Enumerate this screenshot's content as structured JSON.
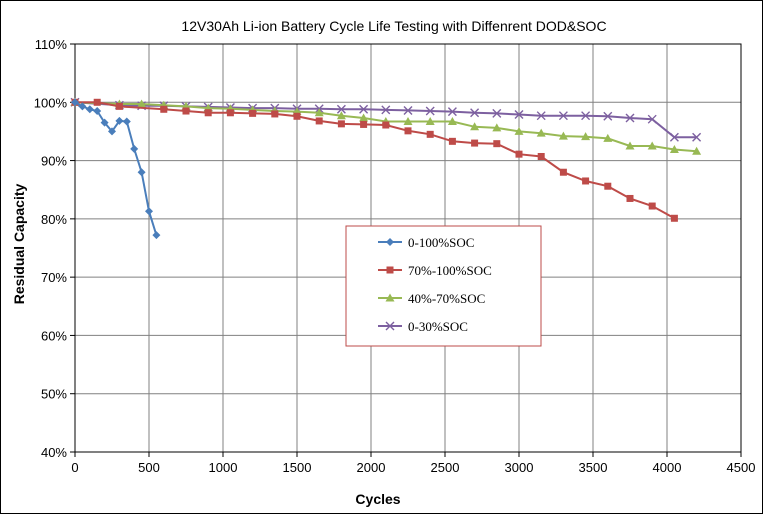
{
  "chart_data": {
    "type": "line",
    "title": "12V30Ah Li-ion Battery Cycle Life Testing with Diffenrent DOD&SOC",
    "xlabel": "Cycles",
    "ylabel": "Residual Capacity",
    "xlim": [
      0,
      4500
    ],
    "ylim": [
      40,
      110
    ],
    "xticks": [
      0,
      500,
      1000,
      1500,
      2000,
      2500,
      3000,
      3500,
      4000,
      4500
    ],
    "xtick_labels": [
      "0",
      "500",
      "1000",
      "1500",
      "2000",
      "2500",
      "3000",
      "3500",
      "4000",
      "4500"
    ],
    "yticks": [
      40,
      50,
      60,
      70,
      80,
      90,
      100,
      110
    ],
    "ytick_labels": [
      "40%",
      "50%",
      "60%",
      "70%",
      "80%",
      "90%",
      "100%",
      "110%"
    ],
    "grid": true,
    "legend_position": "center",
    "series": [
      {
        "name": "0-100%SOC",
        "color": "#4a7ebb",
        "marker": "diamond",
        "points": [
          [
            0,
            100
          ],
          [
            50,
            99.3
          ],
          [
            100,
            98.8
          ],
          [
            150,
            98.5
          ],
          [
            200,
            96.5
          ],
          [
            250,
            95
          ],
          [
            300,
            96.8
          ],
          [
            350,
            96.7
          ],
          [
            400,
            92
          ],
          [
            450,
            88
          ],
          [
            500,
            81.3
          ],
          [
            550,
            77.2
          ]
        ]
      },
      {
        "name": "70%-100%SOC",
        "color": "#be4b48",
        "marker": "square",
        "points": [
          [
            0,
            100
          ],
          [
            150,
            100
          ],
          [
            300,
            99.3
          ],
          [
            600,
            98.8
          ],
          [
            750,
            98.5
          ],
          [
            900,
            98.2
          ],
          [
            1050,
            98.2
          ],
          [
            1200,
            98.1
          ],
          [
            1350,
            98
          ],
          [
            1500,
            97.6
          ],
          [
            1650,
            96.8
          ],
          [
            1800,
            96.3
          ],
          [
            1950,
            96.2
          ],
          [
            2100,
            96.1
          ],
          [
            2250,
            95.1
          ],
          [
            2400,
            94.5
          ],
          [
            2550,
            93.3
          ],
          [
            2700,
            93
          ],
          [
            2850,
            92.9
          ],
          [
            3000,
            91.1
          ],
          [
            3150,
            90.7
          ],
          [
            3300,
            88
          ],
          [
            3450,
            86.5
          ],
          [
            3600,
            85.6
          ],
          [
            3750,
            83.5
          ],
          [
            3900,
            82.2
          ],
          [
            4050,
            80.1
          ]
        ]
      },
      {
        "name": "40%-70%SOC",
        "color": "#98b954",
        "marker": "triangle",
        "points": [
          [
            0,
            100
          ],
          [
            300,
            99.7
          ],
          [
            450,
            99.7
          ],
          [
            600,
            99.5
          ],
          [
            750,
            99.3
          ],
          [
            900,
            99
          ],
          [
            1050,
            98.9
          ],
          [
            1200,
            98.7
          ],
          [
            1350,
            98.5
          ],
          [
            1500,
            98.4
          ],
          [
            1650,
            98.2
          ],
          [
            1800,
            97.7
          ],
          [
            1950,
            97.3
          ],
          [
            2100,
            96.7
          ],
          [
            2250,
            96.7
          ],
          [
            2400,
            96.7
          ],
          [
            2550,
            96.7
          ],
          [
            2700,
            95.8
          ],
          [
            2850,
            95.6
          ],
          [
            3000,
            95
          ],
          [
            3150,
            94.7
          ],
          [
            3300,
            94.2
          ],
          [
            3450,
            94.1
          ],
          [
            3600,
            93.8
          ],
          [
            3750,
            92.5
          ],
          [
            3900,
            92.5
          ],
          [
            4050,
            91.9
          ],
          [
            4200,
            91.6
          ]
        ]
      },
      {
        "name": "0-30%SOC",
        "color": "#7d60a0",
        "marker": "x",
        "points": [
          [
            0,
            100
          ],
          [
            300,
            99.5
          ],
          [
            450,
            99.4
          ],
          [
            600,
            99.4
          ],
          [
            750,
            99.3
          ],
          [
            900,
            99.2
          ],
          [
            1050,
            99.1
          ],
          [
            1200,
            99
          ],
          [
            1350,
            99
          ],
          [
            1500,
            98.9
          ],
          [
            1650,
            98.9
          ],
          [
            1800,
            98.8
          ],
          [
            1950,
            98.8
          ],
          [
            2100,
            98.7
          ],
          [
            2250,
            98.6
          ],
          [
            2400,
            98.5
          ],
          [
            2550,
            98.4
          ],
          [
            2700,
            98.2
          ],
          [
            2850,
            98.1
          ],
          [
            3000,
            97.9
          ],
          [
            3150,
            97.7
          ],
          [
            3300,
            97.7
          ],
          [
            3450,
            97.7
          ],
          [
            3600,
            97.6
          ],
          [
            3750,
            97.3
          ],
          [
            3900,
            97.1
          ],
          [
            4050,
            94
          ],
          [
            4200,
            94
          ]
        ]
      }
    ]
  }
}
